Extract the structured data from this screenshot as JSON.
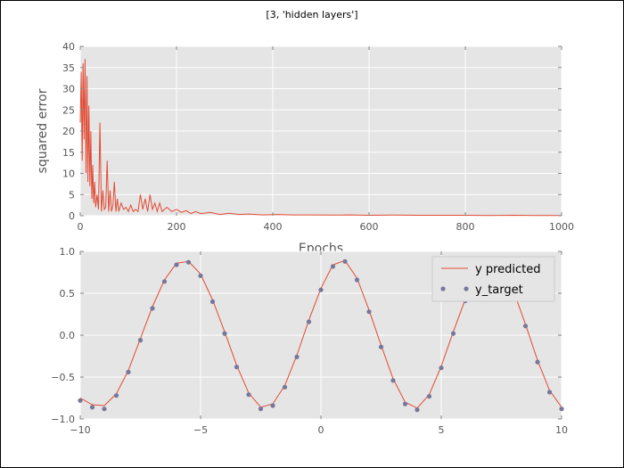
{
  "figure": {
    "title": "[3, 'hidden layers']"
  },
  "colors": {
    "background": "#e5e5e5",
    "grid": "#ffffff",
    "line": "#e24a33",
    "marker": "#777799",
    "text": "#555555"
  },
  "chart_data": [
    {
      "type": "line",
      "xlabel": "Epochs",
      "ylabel": "squared error",
      "xlim": [
        0,
        1000
      ],
      "ylim": [
        0,
        40
      ],
      "xticks": [
        0,
        200,
        400,
        600,
        800,
        1000
      ],
      "yticks": [
        0,
        5,
        10,
        15,
        20,
        25,
        30,
        35,
        40
      ],
      "grid": true,
      "series": [
        {
          "x": [
            0,
            2,
            4,
            6,
            8,
            10,
            12,
            14,
            16,
            18,
            20,
            22,
            24,
            26,
            28,
            30,
            32,
            35,
            38,
            41,
            44,
            47,
            50,
            53,
            56,
            59,
            62,
            65,
            68,
            71,
            74,
            77,
            80,
            85,
            90,
            95,
            100,
            105,
            110,
            115,
            120,
            125,
            130,
            135,
            140,
            145,
            150,
            155,
            160,
            165,
            170,
            180,
            190,
            200,
            210,
            220,
            230,
            240,
            250,
            270,
            290,
            310,
            330,
            350,
            380,
            410,
            440,
            480,
            520,
            560,
            600,
            650,
            700,
            750,
            800,
            850,
            900,
            950,
            1000
          ],
          "y": [
            22,
            34,
            13,
            36,
            18,
            37,
            10,
            33,
            8,
            26,
            7,
            20,
            4,
            12,
            3,
            8,
            2,
            5,
            1.5,
            22,
            1,
            6,
            1.5,
            2,
            13,
            1,
            6,
            1,
            2.5,
            8,
            1,
            4,
            1,
            3,
            1.5,
            2,
            1,
            2.5,
            1,
            1.5,
            1,
            5,
            1.5,
            4,
            1,
            5,
            1.5,
            3,
            1,
            3,
            1,
            2,
            1,
            1.5,
            0.8,
            1.2,
            0.5,
            1,
            0.5,
            0.8,
            0.3,
            0.6,
            0.3,
            0.4,
            0.2,
            0.3,
            0.2,
            0.2,
            0.15,
            0.2,
            0.1,
            0.15,
            0.1,
            0.1,
            0.1,
            0.05,
            0.1,
            0.05,
            0.05
          ]
        }
      ]
    },
    {
      "type": "line",
      "xlim": [
        -10,
        10
      ],
      "ylim": [
        -1.0,
        1.0
      ],
      "xticks": [
        -10,
        -5,
        0,
        5,
        10
      ],
      "yticks": [
        -1.0,
        -0.5,
        0.0,
        0.5,
        1.0
      ],
      "ytick_labels": [
        "−1.0",
        "−0.5",
        "0.0",
        "0.5",
        "1.0"
      ],
      "xtick_labels": [
        "−10",
        "−5",
        "0",
        "5",
        "10"
      ],
      "grid": true,
      "legend": {
        "placement": "top-right"
      },
      "series": [
        {
          "name": "y predicted",
          "style": "line",
          "x": [
            -10,
            -9.5,
            -9,
            -8.5,
            -8,
            -7.5,
            -7,
            -6.5,
            -6,
            -5.5,
            -5,
            -4.5,
            -4,
            -3.5,
            -3,
            -2.5,
            -2,
            -1.5,
            -1,
            -0.5,
            0,
            0.5,
            1,
            1.5,
            2,
            2.5,
            3,
            3.5,
            4,
            4.5,
            5,
            5.5,
            6,
            6.5,
            7,
            7.5,
            8,
            8.5,
            9,
            9.5,
            10
          ],
          "y": [
            -0.75,
            -0.83,
            -0.84,
            -0.7,
            -0.42,
            -0.04,
            0.34,
            0.66,
            0.86,
            0.88,
            0.73,
            0.42,
            0.04,
            -0.36,
            -0.69,
            -0.86,
            -0.82,
            -0.6,
            -0.24,
            0.18,
            0.56,
            0.84,
            0.89,
            0.68,
            0.3,
            -0.12,
            -0.52,
            -0.8,
            -0.87,
            -0.71,
            -0.37,
            0.04,
            0.43,
            0.74,
            0.88,
            0.8,
            0.53,
            0.13,
            -0.3,
            -0.66,
            -0.86
          ]
        },
        {
          "name": "y_target",
          "style": "markers",
          "x": [
            -10,
            -9.5,
            -9,
            -8.5,
            -8,
            -7.5,
            -7,
            -6.5,
            -6,
            -5.5,
            -5,
            -4.5,
            -4,
            -3.5,
            -3,
            -2.5,
            -2,
            -1.5,
            -1,
            -0.5,
            0,
            0.5,
            1,
            1.5,
            2,
            2.5,
            3,
            3.5,
            4,
            4.5,
            5,
            5.5,
            6,
            6.5,
            7,
            7.5,
            8,
            8.5,
            9,
            9.5,
            10
          ],
          "y": [
            -0.78,
            -0.86,
            -0.88,
            -0.72,
            -0.44,
            -0.06,
            0.32,
            0.64,
            0.84,
            0.87,
            0.71,
            0.4,
            0.02,
            -0.38,
            -0.71,
            -0.88,
            -0.84,
            -0.62,
            -0.26,
            0.16,
            0.54,
            0.82,
            0.88,
            0.66,
            0.28,
            -0.14,
            -0.54,
            -0.82,
            -0.89,
            -0.73,
            -0.39,
            0.02,
            0.41,
            0.72,
            0.86,
            0.78,
            0.51,
            0.11,
            -0.32,
            -0.68,
            -0.88
          ]
        }
      ]
    }
  ]
}
